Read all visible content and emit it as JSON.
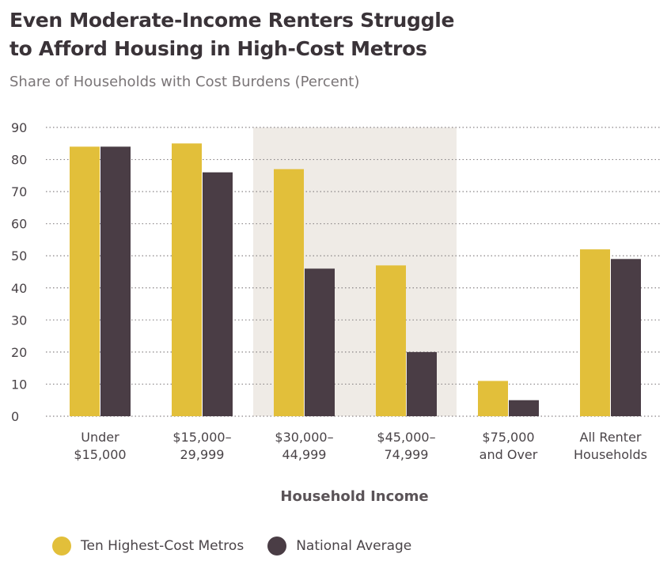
{
  "title_line1": "Even Moderate-Income Renters Struggle",
  "title_line2": "to Afford Housing in High-Cost Metros",
  "subtitle": "Share of Households with Cost Burdens (Percent)",
  "colors": {
    "series1": "#e2bf3a",
    "series2": "#4a3d45",
    "highlight": "#efebe6",
    "grid": "#8a8587",
    "text": "#4a4448"
  },
  "chart_data": {
    "type": "bar",
    "categories": [
      [
        "Under",
        "$15,000"
      ],
      [
        "$15,000–",
        "29,999"
      ],
      [
        "$30,000–",
        "44,999"
      ],
      [
        "$45,000–",
        "74,999"
      ],
      [
        "$75,000",
        "and Over"
      ],
      [
        "All Renter",
        "Households"
      ]
    ],
    "series": [
      {
        "name": "Ten Highest-Cost Metros",
        "values": [
          84,
          85,
          77,
          47,
          11,
          52
        ]
      },
      {
        "name": "National Average",
        "values": [
          84,
          76,
          46,
          20,
          5,
          49
        ]
      }
    ],
    "xlabel": "Household Income",
    "ylabel": "",
    "ylim": [
      0,
      90
    ],
    "yticks": [
      0,
      10,
      20,
      30,
      40,
      50,
      60,
      70,
      80,
      90
    ],
    "highlighted_categories": [
      2,
      3
    ],
    "grid": "dotted horizontal",
    "legend_position": "bottom-left"
  }
}
